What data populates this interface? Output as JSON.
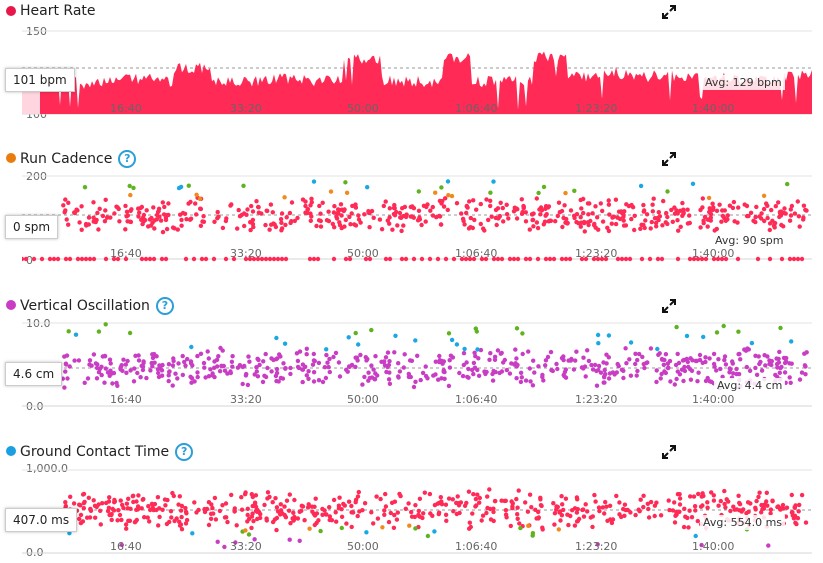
{
  "panels": [
    {
      "key": "hr",
      "title": "Heart Rate",
      "dot_color": "#e8174a",
      "help": false,
      "y_max": "150",
      "y_min": "100",
      "hover": "101 bpm",
      "avg": "Avg: 129 bpm"
    },
    {
      "key": "cad",
      "title": "Run Cadence",
      "dot_color": "#e87d0d",
      "help": true,
      "y_max": "200",
      "y_min": "0",
      "hover": "0 spm",
      "avg": "Avg: 90 spm"
    },
    {
      "key": "vo",
      "title": "Vertical Oscillation",
      "dot_color": "#c93cc4",
      "help": true,
      "y_max": "10.0",
      "y_min": "0.0",
      "hover": "4.6 cm",
      "avg": "Avg: 4.4 cm"
    },
    {
      "key": "gct",
      "title": "Ground Contact Time",
      "dot_color": "#1aa0e0",
      "help": true,
      "y_max": "1,000.0",
      "y_min": "0.0",
      "hover": "407.0 ms",
      "avg": "Avg: 554.0 ms"
    }
  ],
  "x_ticks": [
    "16:40",
    "33:20",
    "50:00",
    "1:06:40",
    "1:23:20",
    "1:40:00"
  ],
  "help_glyph": "?",
  "colors": {
    "red": "#ff2a55",
    "orange": "#f08a1c",
    "green": "#5eb31f",
    "blue": "#19a8e3",
    "purple": "#c93cc4"
  }
}
